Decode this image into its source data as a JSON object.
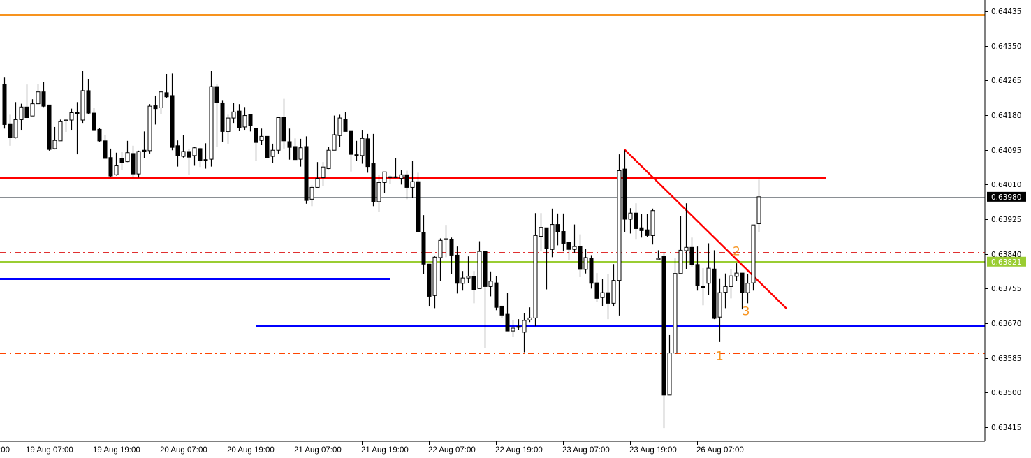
{
  "chart_data": {
    "type": "candlestick",
    "timeframe_bars": "hourly",
    "colors": {
      "bull_body": "#ffffff",
      "bear_body": "#000000",
      "wick": "#000000",
      "background": "#ffffff"
    },
    "ylim": [
      0.6339,
      0.6446
    ],
    "y_ticks": [
      "0.64435",
      "0.64350",
      "0.64265",
      "0.64180",
      "0.64095",
      "0.64010",
      "0.63925",
      "0.63840",
      "0.63755",
      "0.63670",
      "0.63585",
      "0.63500",
      "0.63415"
    ],
    "x_ticks": [
      {
        "bar": -5,
        "label": ":00"
      },
      {
        "bar": 4,
        "label": "19 Aug 07:00"
      },
      {
        "bar": 16,
        "label": "19 Aug 19:00"
      },
      {
        "bar": 28,
        "label": "20 Aug 07:00"
      },
      {
        "bar": 40,
        "label": "20 Aug 19:00"
      },
      {
        "bar": 52,
        "label": "21 Aug 07:00"
      },
      {
        "bar": 64,
        "label": "21 Aug 19:00"
      },
      {
        "bar": 76,
        "label": "22 Aug 07:00"
      },
      {
        "bar": 88,
        "label": "22 Aug 19:00"
      },
      {
        "bar": 100,
        "label": "23 Aug 07:00"
      },
      {
        "bar": 112,
        "label": "23 Aug 19:00"
      },
      {
        "bar": 124,
        "label": "26 Aug 07:00"
      }
    ],
    "ohlc": [
      [
        0.64255,
        0.64272,
        0.64147,
        0.64157
      ],
      [
        0.64159,
        0.64181,
        0.64105,
        0.64125
      ],
      [
        0.64125,
        0.64212,
        0.64123,
        0.64169
      ],
      [
        0.64169,
        0.64208,
        0.64144,
        0.642
      ],
      [
        0.642,
        0.64255,
        0.64173,
        0.64174
      ],
      [
        0.64178,
        0.64219,
        0.64178,
        0.64208
      ],
      [
        0.64208,
        0.64257,
        0.64207,
        0.64237
      ],
      [
        0.64237,
        0.64262,
        0.642,
        0.64202
      ],
      [
        0.64205,
        0.64205,
        0.64093,
        0.64096
      ],
      [
        0.64098,
        0.64151,
        0.64096,
        0.64118
      ],
      [
        0.64117,
        0.64169,
        0.64117,
        0.64164
      ],
      [
        0.64166,
        0.64171,
        0.64139,
        0.64168
      ],
      [
        0.64168,
        0.64196,
        0.64144,
        0.64186
      ],
      [
        0.64185,
        0.64212,
        0.64084,
        0.64186
      ],
      [
        0.64168,
        0.64288,
        0.64161,
        0.6424
      ],
      [
        0.6424,
        0.64269,
        0.64183,
        0.64185
      ],
      [
        0.64185,
        0.64198,
        0.64142,
        0.64144
      ],
      [
        0.64145,
        0.64149,
        0.64115,
        0.64117
      ],
      [
        0.64117,
        0.64132,
        0.64074,
        0.64074
      ],
      [
        0.64076,
        0.64098,
        0.64029,
        0.64031
      ],
      [
        0.64034,
        0.64088,
        0.64032,
        0.64056
      ],
      [
        0.64074,
        0.64091,
        0.64046,
        0.64063
      ],
      [
        0.64066,
        0.64117,
        0.64065,
        0.64088
      ],
      [
        0.64086,
        0.64105,
        0.64027,
        0.64036
      ],
      [
        0.64036,
        0.64093,
        0.64027,
        0.64091
      ],
      [
        0.64094,
        0.6414,
        0.64074,
        0.64091
      ],
      [
        0.64093,
        0.64207,
        0.64086,
        0.64202
      ],
      [
        0.64203,
        0.64228,
        0.64157,
        0.64196
      ],
      [
        0.64198,
        0.64238,
        0.64183,
        0.64237
      ],
      [
        0.64235,
        0.64281,
        0.64222,
        0.64225
      ],
      [
        0.64228,
        0.64282,
        0.64094,
        0.64101
      ],
      [
        0.64105,
        0.64118,
        0.64054,
        0.64081
      ],
      [
        0.64079,
        0.64132,
        0.64076,
        0.64091
      ],
      [
        0.64091,
        0.64098,
        0.64034,
        0.64077
      ],
      [
        0.64081,
        0.64103,
        0.64056,
        0.641
      ],
      [
        0.64098,
        0.641,
        0.64053,
        0.64068
      ],
      [
        0.64071,
        0.64111,
        0.64049,
        0.64068
      ],
      [
        0.64072,
        0.64289,
        0.64054,
        0.6425
      ],
      [
        0.6425,
        0.64255,
        0.64103,
        0.6421
      ],
      [
        0.6421,
        0.64217,
        0.64115,
        0.6414
      ],
      [
        0.6414,
        0.64181,
        0.6411,
        0.64173
      ],
      [
        0.64173,
        0.6421,
        0.64161,
        0.64188
      ],
      [
        0.6419,
        0.64207,
        0.64142,
        0.64149
      ],
      [
        0.64151,
        0.642,
        0.64144,
        0.64179
      ],
      [
        0.64181,
        0.64181,
        0.6414,
        0.64154
      ],
      [
        0.64147,
        0.64147,
        0.64068,
        0.64113
      ],
      [
        0.64118,
        0.64147,
        0.64108,
        0.64128
      ],
      [
        0.64128,
        0.64128,
        0.64076,
        0.64076
      ],
      [
        0.64079,
        0.6411,
        0.64063,
        0.64094
      ],
      [
        0.64094,
        0.64174,
        0.64086,
        0.64174
      ],
      [
        0.64174,
        0.6422,
        0.64098,
        0.64117
      ],
      [
        0.64115,
        0.64147,
        0.64071,
        0.64101
      ],
      [
        0.64103,
        0.64123,
        0.64071,
        0.64071
      ],
      [
        0.64072,
        0.64122,
        0.64054,
        0.641
      ],
      [
        0.64103,
        0.64128,
        0.63963,
        0.63971
      ],
      [
        0.63974,
        0.64008,
        0.63957,
        0.64003
      ],
      [
        0.64003,
        0.64065,
        0.64003,
        0.64025
      ],
      [
        0.64027,
        0.64065,
        0.64007,
        0.64053
      ],
      [
        0.64049,
        0.64103,
        0.64048,
        0.64094
      ],
      [
        0.64094,
        0.64179,
        0.64094,
        0.64132
      ],
      [
        0.6413,
        0.64181,
        0.64103,
        0.64173
      ],
      [
        0.64169,
        0.64188,
        0.6414,
        0.6414
      ],
      [
        0.64142,
        0.64142,
        0.64042,
        0.64084
      ],
      [
        0.64083,
        0.64117,
        0.64068,
        0.64081
      ],
      [
        0.64081,
        0.64144,
        0.64061,
        0.64123
      ],
      [
        0.64122,
        0.64134,
        0.64039,
        0.64054
      ],
      [
        0.64061,
        0.64134,
        0.63957,
        0.63968
      ],
      [
        0.63968,
        0.64034,
        0.63942,
        0.64015
      ],
      [
        0.64015,
        0.64041,
        0.6399,
        0.64041
      ],
      [
        0.64029,
        0.64032,
        0.64012,
        0.64027
      ],
      [
        0.64027,
        0.64074,
        0.64027,
        0.64029
      ],
      [
        0.64025,
        0.64046,
        0.6401,
        0.64034
      ],
      [
        0.64034,
        0.64044,
        0.63974,
        0.64003
      ],
      [
        0.64003,
        0.64068,
        0.63978,
        0.64017
      ],
      [
        0.64017,
        0.64039,
        0.63894,
        0.63894
      ],
      [
        0.63892,
        0.63935,
        0.6379,
        0.63815
      ],
      [
        0.63815,
        0.63815,
        0.63711,
        0.63736
      ],
      [
        0.63738,
        0.63834,
        0.63707,
        0.63832
      ],
      [
        0.63831,
        0.63878,
        0.63773,
        0.63873
      ],
      [
        0.63875,
        0.63911,
        0.63832,
        0.63877
      ],
      [
        0.63875,
        0.6388,
        0.6379,
        0.63837
      ],
      [
        0.63837,
        0.63858,
        0.63743,
        0.63768
      ],
      [
        0.63768,
        0.63798,
        0.6375,
        0.63781
      ],
      [
        0.63781,
        0.63834,
        0.63768,
        0.63785
      ],
      [
        0.63785,
        0.63798,
        0.63719,
        0.63753
      ],
      [
        0.63755,
        0.63871,
        0.63755,
        0.63846
      ],
      [
        0.63846,
        0.63846,
        0.63609,
        0.6376
      ],
      [
        0.6376,
        0.63797,
        0.63736,
        0.63773
      ],
      [
        0.63769,
        0.63786,
        0.63702,
        0.63709
      ],
      [
        0.63712,
        0.63712,
        0.63683,
        0.6369
      ],
      [
        0.63692,
        0.63745,
        0.63651,
        0.63651
      ],
      [
        0.63651,
        0.63677,
        0.63636,
        0.63658
      ],
      [
        0.6366,
        0.6368,
        0.63653,
        0.63662
      ],
      [
        0.63648,
        0.63695,
        0.63599,
        0.63677
      ],
      [
        0.63678,
        0.63709,
        0.63673,
        0.63683
      ],
      [
        0.63683,
        0.6394,
        0.63663,
        0.63885
      ],
      [
        0.63883,
        0.6394,
        0.63848,
        0.63905
      ],
      [
        0.63904,
        0.63904,
        0.63753,
        0.63853
      ],
      [
        0.63851,
        0.63951,
        0.63832,
        0.63912
      ],
      [
        0.63912,
        0.63939,
        0.63861,
        0.63894
      ],
      [
        0.63895,
        0.63939,
        0.63846,
        0.63866
      ],
      [
        0.63868,
        0.63868,
        0.63824,
        0.63851
      ],
      [
        0.63851,
        0.63912,
        0.63843,
        0.63858
      ],
      [
        0.63858,
        0.63888,
        0.63783,
        0.63802
      ],
      [
        0.63802,
        0.63853,
        0.63792,
        0.63831
      ],
      [
        0.63829,
        0.63837,
        0.63755,
        0.63768
      ],
      [
        0.63769,
        0.63793,
        0.63723,
        0.63731
      ],
      [
        0.63733,
        0.63778,
        0.63712,
        0.63745
      ],
      [
        0.63745,
        0.6379,
        0.6368,
        0.63719
      ],
      [
        0.63719,
        0.63815,
        0.63711,
        0.63775
      ],
      [
        0.63775,
        0.64084,
        0.63689,
        0.64044
      ],
      [
        0.64048,
        0.64094,
        0.63894,
        0.63925
      ],
      [
        0.63925,
        0.63952,
        0.6389,
        0.6394
      ],
      [
        0.6394,
        0.63964,
        0.63875,
        0.63902
      ],
      [
        0.63904,
        0.63937,
        0.6388,
        0.63897
      ],
      [
        0.63899,
        0.63937,
        0.63882,
        0.63885
      ],
      [
        0.63885,
        0.63951,
        0.63863,
        0.63946
      ],
      [
        0.63826,
        0.63849,
        0.63826,
        0.63829
      ],
      [
        0.63834,
        0.63844,
        0.63413,
        0.63494
      ],
      [
        0.63494,
        0.63641,
        0.63494,
        0.63597
      ],
      [
        0.63597,
        0.63829,
        0.63597,
        0.63792
      ],
      [
        0.63792,
        0.63932,
        0.63792,
        0.63849
      ],
      [
        0.63848,
        0.63964,
        0.63803,
        0.63856
      ],
      [
        0.63856,
        0.6388,
        0.63809,
        0.63814
      ],
      [
        0.63814,
        0.63858,
        0.6375,
        0.63763
      ],
      [
        0.6376,
        0.63805,
        0.63714,
        0.63758
      ],
      [
        0.63768,
        0.63866,
        0.6374,
        0.63805
      ],
      [
        0.63803,
        0.63849,
        0.6368,
        0.63682
      ],
      [
        0.63685,
        0.6378,
        0.63624,
        0.63745
      ],
      [
        0.63746,
        0.63792,
        0.63707,
        0.6376
      ],
      [
        0.6376,
        0.63802,
        0.63731,
        0.63786
      ],
      [
        0.63785,
        0.63817,
        0.63773,
        0.63793
      ],
      [
        0.63793,
        0.63793,
        0.63704,
        0.63745
      ],
      [
        0.63745,
        0.6379,
        0.63719,
        0.63768
      ],
      [
        0.63769,
        0.63911,
        0.6375,
        0.63911
      ],
      [
        0.63914,
        0.64022,
        0.63894,
        0.6398
      ]
    ],
    "horizontal_lines": [
      {
        "price": 0.64426,
        "color": "#f7931e",
        "style": "solid",
        "from_bar": null,
        "to_bar": null
      },
      {
        "price": 0.64026,
        "color": "#ff0000",
        "style": "solid",
        "from_bar": null,
        "to_bar": 147
      },
      {
        "price": 0.6398,
        "color": "#8a8f94",
        "style": "thin",
        "from_bar": null,
        "to_bar": null
      },
      {
        "price": 0.63845,
        "color": "#e03030",
        "style": "dashdot",
        "from_bar": null,
        "to_bar": null
      },
      {
        "price": 0.63821,
        "color": "#9acd32",
        "style": "solid",
        "from_bar": null,
        "to_bar": null
      },
      {
        "price": 0.6378,
        "color": "#0000ff",
        "style": "solid",
        "from_bar": null,
        "to_bar": 69
      },
      {
        "price": 0.63663,
        "color": "#0000ff",
        "style": "solid",
        "from_bar": 45,
        "to_bar": null
      },
      {
        "price": 0.63597,
        "color": "#ff4500",
        "style": "dashdot",
        "from_bar": null,
        "to_bar": null
      }
    ],
    "trendline": {
      "from": {
        "bar": 111,
        "price": 0.64096
      },
      "to": {
        "bar": 140,
        "price": 0.63706
      },
      "color": "#ff0000"
    },
    "annotations": [
      {
        "text": "1",
        "bar": 128,
        "price": 0.6359,
        "color": "#f7931e"
      },
      {
        "text": "2",
        "bar": 131,
        "price": 0.63847,
        "color": "#f7931e"
      },
      {
        "text": "3",
        "bar": 132.7,
        "price": 0.637,
        "color": "#f7931e"
      }
    ],
    "price_markers": [
      {
        "text": "0.63980",
        "bg": "#000000",
        "fg": "#ffffff",
        "price": 0.6398
      },
      {
        "text": "0.63821",
        "bg": "#9acd32",
        "fg": "#ffffff",
        "price": 0.63821
      }
    ]
  }
}
